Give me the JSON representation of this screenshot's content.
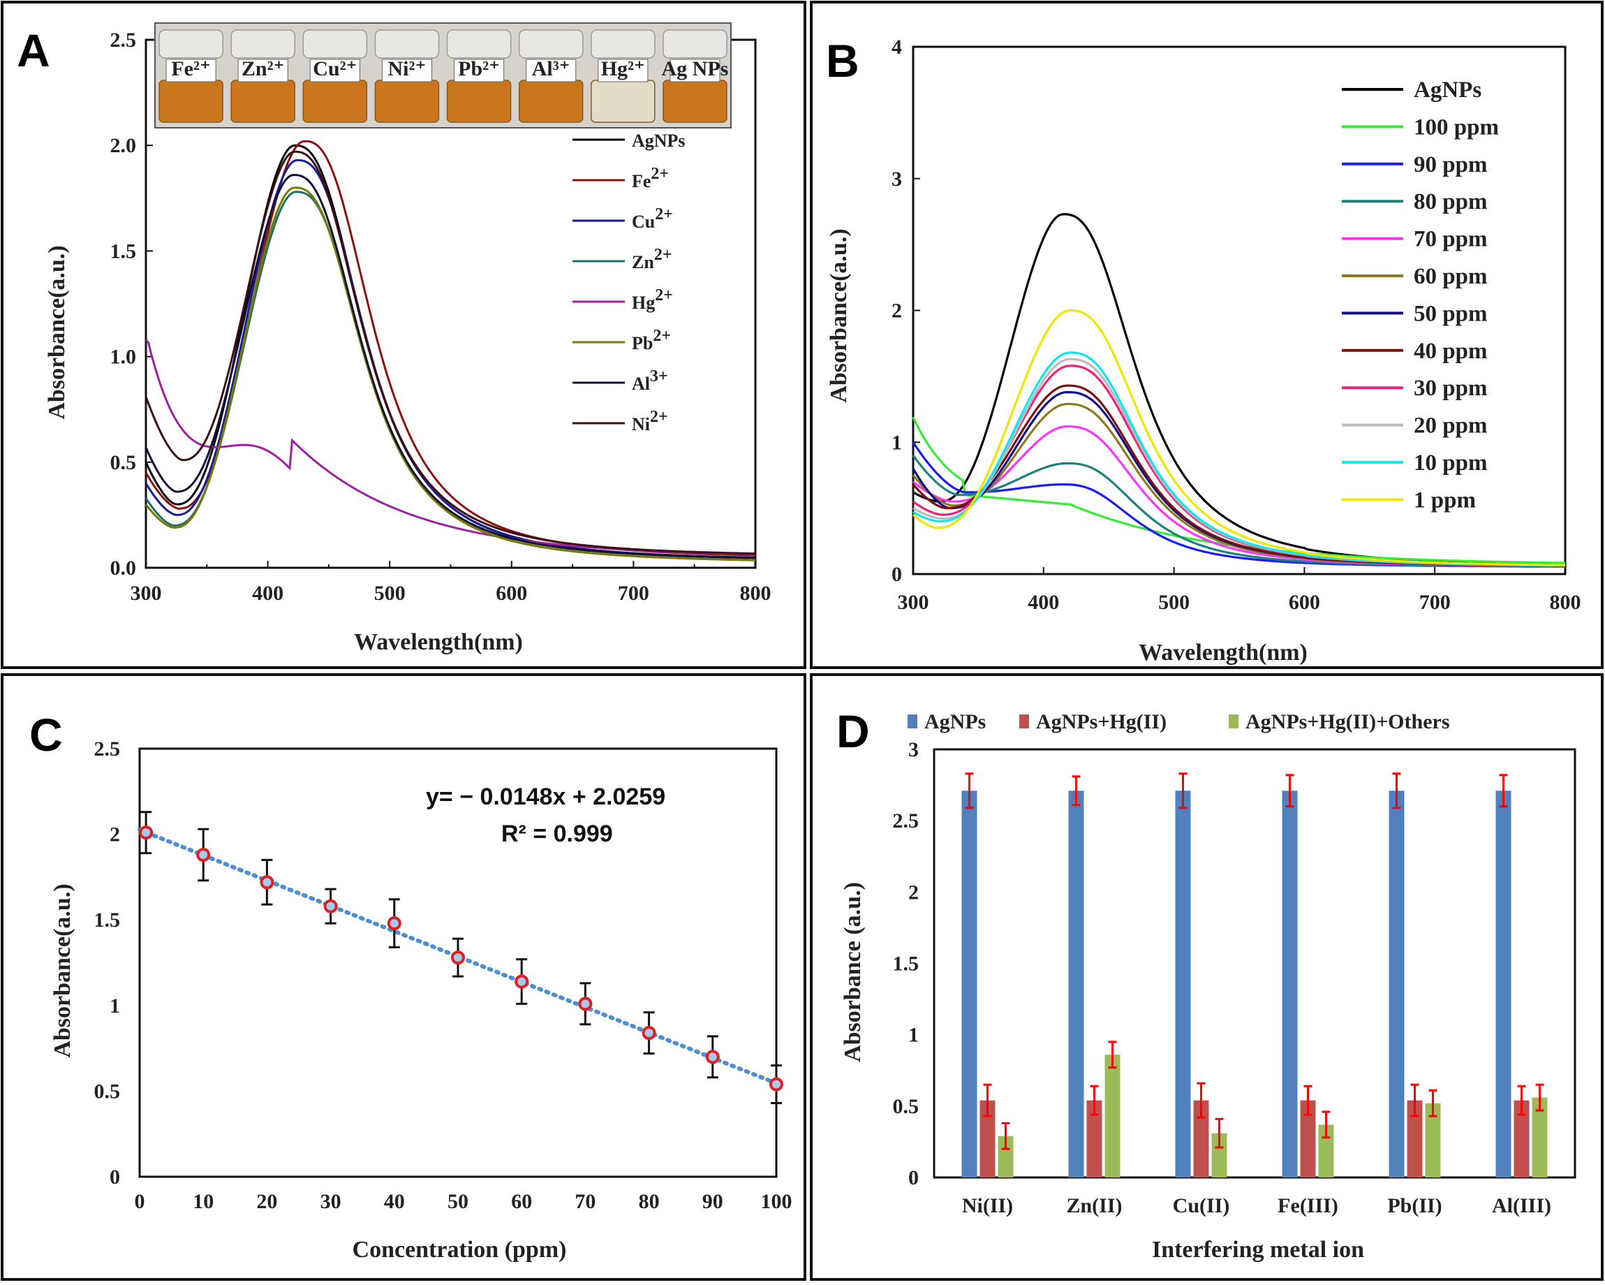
{
  "colors": {
    "agnps_blue": "#4f81bd",
    "hg_red": "#c0504d",
    "others_green": "#9bbb59",
    "errorbar_red": "#ff0000",
    "fit_blue": "#4f8fd0",
    "point_red": "#e0201f"
  },
  "chart_data": [
    {
      "panel": "A",
      "type": "line",
      "xlabel": "Wavelength(nm)",
      "ylabel": "Absorbance(a.u.)",
      "xlim": [
        300,
        800
      ],
      "ylim": [
        0,
        2.5
      ],
      "xticks": [
        "300",
        "400",
        "500",
        "600",
        "700",
        "800"
      ],
      "yticks": [
        "0.0",
        "0.5",
        "1.0",
        "1.5",
        "2.0",
        "2.5"
      ],
      "inset": {
        "description_labels": [
          "Fe²⁺",
          "Zn²⁺",
          "Cu²⁺",
          "Ni²⁺",
          "Pb²⁺",
          "Al³⁺",
          "Hg²⁺",
          "Ag NPs"
        ]
      },
      "series": [
        {
          "name": "AgNPs",
          "ion": "AgNPs",
          "charge": "",
          "color": "#000000",
          "peak_x": 422,
          "peak_y": 2.0,
          "min_x": 325,
          "min_y": 0.3,
          "start_y": 0.5,
          "tail": 0.03
        },
        {
          "name": "Fe2+",
          "ion": "Fe",
          "charge": "2+",
          "color": "#8b1010",
          "peak_x": 430,
          "peak_y": 2.02,
          "min_x": 327,
          "min_y": 0.28,
          "start_y": 0.45,
          "tail": 0.04
        },
        {
          "name": "Cu2+",
          "ion": "Cu",
          "charge": "2+",
          "color": "#1a1a9c",
          "peak_x": 424,
          "peak_y": 1.93,
          "min_x": 325,
          "min_y": 0.25,
          "start_y": 0.4,
          "tail": 0.03
        },
        {
          "name": "Zn2+",
          "ion": "Zn",
          "charge": "2+",
          "color": "#1e6f6a",
          "peak_x": 423,
          "peak_y": 1.78,
          "min_x": 323,
          "min_y": 0.2,
          "start_y": 0.33,
          "tail": 0.02
        },
        {
          "name": "Hg2+",
          "ion": "Hg",
          "charge": "2+",
          "color": "#a020a0",
          "type": "hg"
        },
        {
          "name": "Pb2+",
          "ion": "Pb",
          "charge": "2+",
          "color": "#7a7a00",
          "peak_x": 422,
          "peak_y": 1.8,
          "min_x": 323,
          "min_y": 0.19,
          "start_y": 0.3,
          "tail": 0.02
        },
        {
          "name": "Al3+",
          "ion": "Al",
          "charge": "3+",
          "color": "#111133",
          "peak_x": 421,
          "peak_y": 1.86,
          "min_x": 325,
          "min_y": 0.36,
          "start_y": 0.57,
          "tail": 0.03
        },
        {
          "name": "Ni2+",
          "ion": "Ni",
          "charge": "2+",
          "color": "#3a1010",
          "peak_x": 422,
          "peak_y": 1.97,
          "min_x": 330,
          "min_y": 0.51,
          "start_y": 0.81,
          "tail": 0.05
        }
      ]
    },
    {
      "panel": "B",
      "type": "line",
      "xlabel": "Wavelength(nm)",
      "ylabel": "Absorbance(a.u.)",
      "xlim": [
        300,
        800
      ],
      "ylim": [
        0,
        4
      ],
      "xticks": [
        "300",
        "400",
        "500",
        "600",
        "700",
        "800"
      ],
      "yticks": [
        "0",
        "1",
        "2",
        "3",
        "4"
      ],
      "series": [
        {
          "name": "AgNPs",
          "color": "#000000",
          "peak_x": 415,
          "peak_y": 2.73,
          "min_x": 320,
          "min_y": 0.55,
          "start_y": 0.62
        },
        {
          "name": "100 ppm",
          "color": "#33ee33",
          "peak_x": 415,
          "peak_y": 0.53,
          "min_x": 320,
          "min_y": 0.4,
          "start_y": 1.19,
          "type": "flat"
        },
        {
          "name": "90 ppm",
          "color": "#1a1aff",
          "peak_x": 415,
          "peak_y": 0.68,
          "min_x": 340,
          "min_y": 0.62,
          "start_y": 1.0
        },
        {
          "name": "80 ppm",
          "color": "#1e8080",
          "peak_x": 418,
          "peak_y": 0.84,
          "min_x": 335,
          "min_y": 0.6,
          "start_y": 0.9
        },
        {
          "name": "70 ppm",
          "color": "#ff33ff",
          "peak_x": 418,
          "peak_y": 1.12,
          "min_x": 330,
          "min_y": 0.55,
          "start_y": 0.7
        },
        {
          "name": "60 ppm",
          "color": "#8a7a20",
          "peak_x": 418,
          "peak_y": 1.29,
          "min_x": 330,
          "min_y": 0.52,
          "start_y": 0.75
        },
        {
          "name": "50 ppm",
          "color": "#10108a",
          "peak_x": 418,
          "peak_y": 1.38,
          "min_x": 328,
          "min_y": 0.5,
          "start_y": 0.8
        },
        {
          "name": "40 ppm",
          "color": "#7a1010",
          "peak_x": 418,
          "peak_y": 1.43,
          "min_x": 325,
          "min_y": 0.5,
          "start_y": 0.68
        },
        {
          "name": "30 ppm",
          "color": "#ee2277",
          "peak_x": 420,
          "peak_y": 1.58,
          "min_x": 322,
          "min_y": 0.45,
          "start_y": 0.55
        },
        {
          "name": "20 ppm",
          "color": "#bbbbbb",
          "peak_x": 420,
          "peak_y": 1.63,
          "min_x": 322,
          "min_y": 0.42,
          "start_y": 0.5
        },
        {
          "name": "10 ppm",
          "color": "#11e6ee",
          "peak_x": 420,
          "peak_y": 1.68,
          "min_x": 320,
          "min_y": 0.4,
          "start_y": 0.47
        },
        {
          "name": "1 ppm",
          "color": "#f2e600",
          "peak_x": 420,
          "peak_y": 2.0,
          "min_x": 318,
          "min_y": 0.35,
          "start_y": 0.45
        }
      ]
    },
    {
      "panel": "C",
      "type": "scatter",
      "xlabel": "Concentration (ppm)",
      "ylabel": "Absorbance(a.u.)",
      "xlim": [
        0,
        100
      ],
      "ylim": [
        0,
        2.5
      ],
      "xticks": [
        "0",
        "10",
        "20",
        "30",
        "40",
        "50",
        "60",
        "70",
        "80",
        "90",
        "100"
      ],
      "yticks": [
        "0",
        "0.5",
        "1",
        "1.5",
        "2",
        "2.5"
      ],
      "x": [
        1,
        10,
        20,
        30,
        40,
        50,
        60,
        70,
        80,
        90,
        100
      ],
      "y": [
        2.01,
        1.88,
        1.72,
        1.58,
        1.48,
        1.28,
        1.14,
        1.01,
        0.84,
        0.7,
        0.54
      ],
      "err": [
        0.12,
        0.15,
        0.13,
        0.1,
        0.14,
        0.11,
        0.13,
        0.12,
        0.12,
        0.12,
        0.11
      ],
      "fit": {
        "slope": -0.0148,
        "intercept": 2.0259
      },
      "equation": "y= − 0.0148x + 2.0259",
      "r2_label": "R² = 0.999"
    },
    {
      "panel": "D",
      "type": "bar",
      "xlabel": "Interfering metal ion",
      "ylabel": "Absorbance (a.u.)",
      "ylim": [
        0,
        3
      ],
      "yticks": [
        "0",
        "0.5",
        "1",
        "1.5",
        "2",
        "2.5",
        "3"
      ],
      "categories": [
        "Ni(II)",
        "Zn(II)",
        "Cu(II)",
        "Fe(III)",
        "Pb(II)",
        "Al(III)"
      ],
      "series": [
        {
          "name": "AgNPs",
          "color": "#4f81bd",
          "values": [
            2.71,
            2.71,
            2.71,
            2.71,
            2.71,
            2.71
          ],
          "err": [
            0.12,
            0.1,
            0.12,
            0.11,
            0.12,
            0.11
          ]
        },
        {
          "name": "AgNPs+Hg(II)",
          "color": "#c0504d",
          "values": [
            0.54,
            0.54,
            0.54,
            0.54,
            0.54,
            0.54
          ],
          "err": [
            0.11,
            0.1,
            0.12,
            0.1,
            0.11,
            0.1
          ]
        },
        {
          "name": "AgNPs+Hg(II)+Others",
          "color": "#9bbb59",
          "values": [
            0.29,
            0.86,
            0.31,
            0.37,
            0.52,
            0.56
          ],
          "err": [
            0.09,
            0.09,
            0.1,
            0.09,
            0.09,
            0.09
          ]
        }
      ]
    }
  ],
  "panels": {
    "A": {
      "letter": "A"
    },
    "B": {
      "letter": "B"
    },
    "C": {
      "letter": "C"
    },
    "D": {
      "letter": "D"
    }
  }
}
